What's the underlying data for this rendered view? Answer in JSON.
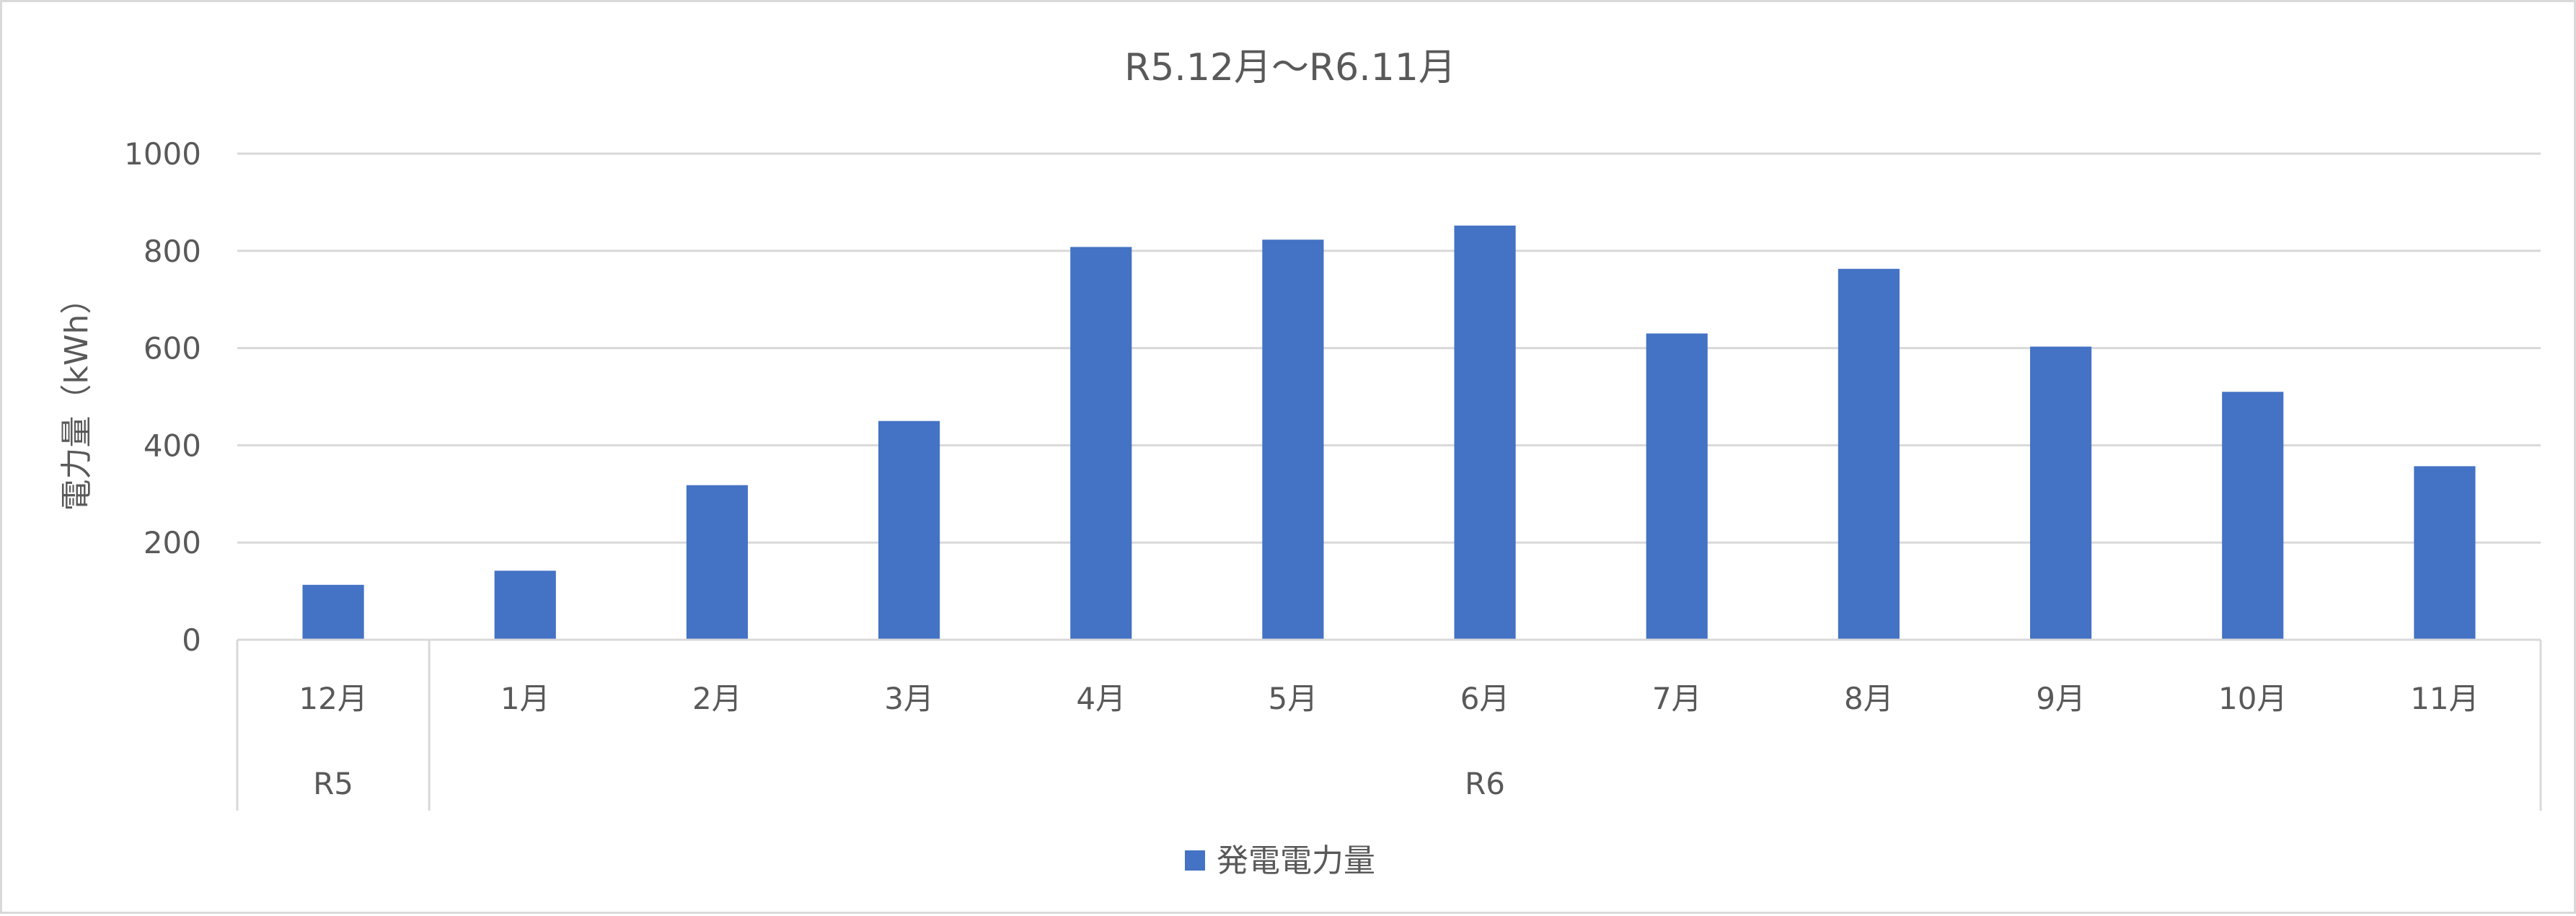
{
  "chart_data": {
    "type": "bar",
    "title": "R5.12月～R6.11月",
    "ylabel": "電力量（kWh）",
    "xlabel": "",
    "categories": [
      "12月",
      "1月",
      "2月",
      "3月",
      "4月",
      "5月",
      "6月",
      "7月",
      "8月",
      "9月",
      "10月",
      "11月"
    ],
    "category_groups": [
      {
        "label": "R5",
        "span": 1
      },
      {
        "label": "R6",
        "span": 11
      }
    ],
    "series": [
      {
        "name": "発電電力量",
        "color": "#4472c4",
        "values": [
          113,
          142,
          318,
          450,
          808,
          823,
          852,
          630,
          763,
          603,
          510,
          357
        ]
      }
    ],
    "ylim": [
      0,
      1000
    ],
    "yticks": [
      "0",
      "200",
      "400",
      "600",
      "800",
      "1000"
    ],
    "grid": true,
    "legend": "bottom"
  }
}
